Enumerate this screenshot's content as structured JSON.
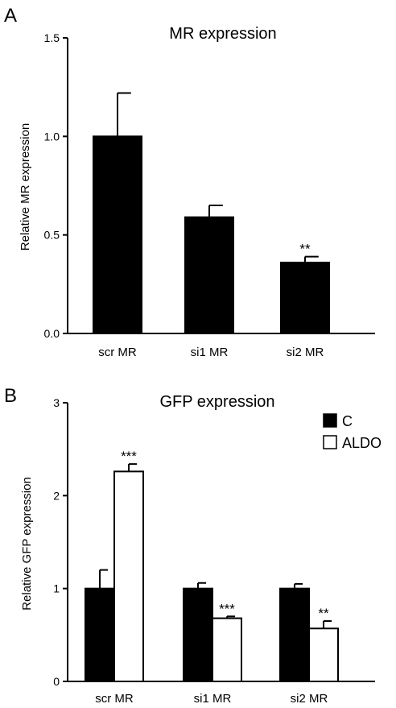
{
  "colors": {
    "bar_fill": "#000000",
    "aldo_fill": "#ffffff",
    "stroke": "#000000"
  },
  "chart_data": [
    {
      "type": "bar",
      "panel": "A",
      "title": "MR expression",
      "ylabel": "Relative MR expression",
      "xlabel": "",
      "categories": [
        "scr MR",
        "si1 MR",
        "si2 MR"
      ],
      "values": [
        1.0,
        0.59,
        0.36
      ],
      "errors": [
        0.22,
        0.06,
        0.03
      ],
      "annotations": [
        "",
        "",
        "**"
      ],
      "ylim": [
        0,
        1.5
      ],
      "yticks": [
        "0.0",
        "0.5",
        "1.0",
        "1.5"
      ],
      "grid": false
    },
    {
      "type": "bar",
      "panel": "B",
      "title": "GFP expression",
      "ylabel": "Relative GFP expression",
      "xlabel": "",
      "categories": [
        "scr MR",
        "si1 MR",
        "si2 MR"
      ],
      "series": [
        {
          "name": "C",
          "values": [
            1.0,
            1.0,
            1.0
          ],
          "errors": [
            0.2,
            0.06,
            0.05
          ],
          "annotations": [
            "",
            "",
            ""
          ]
        },
        {
          "name": "ALDO",
          "values": [
            2.26,
            0.68,
            0.57
          ],
          "errors": [
            0.08,
            0.02,
            0.08
          ],
          "annotations": [
            "***",
            "***",
            "**"
          ]
        }
      ],
      "ylim": [
        0,
        3
      ],
      "yticks": [
        "0",
        "1",
        "2",
        "3"
      ],
      "legend_position": "top-right",
      "grid": false
    }
  ]
}
